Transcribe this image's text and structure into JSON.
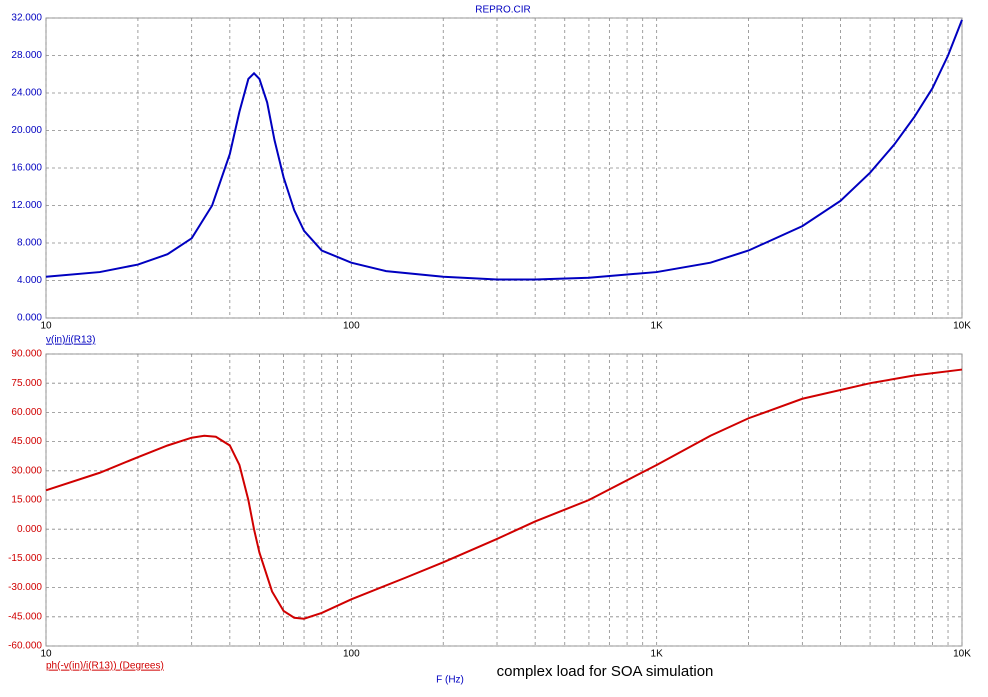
{
  "chart_data": [
    {
      "type": "line",
      "title": "REPRO.CIR",
      "y_label": "v(in)/i(R13)",
      "xscale": "log",
      "grid": true,
      "xlim": [
        10,
        10000
      ],
      "xticks": [
        10,
        100,
        {
          "value": 1000,
          "label": "1K"
        },
        {
          "value": 10000,
          "label": "10K"
        }
      ],
      "ylim": [
        0,
        32
      ],
      "yticks": [
        {
          "value": 0,
          "label": "0.000"
        },
        {
          "value": 4,
          "label": "4.000"
        },
        {
          "value": 8,
          "label": "8.000"
        },
        {
          "value": 12,
          "label": "12.000"
        },
        {
          "value": 16,
          "label": "16.000"
        },
        {
          "value": 20,
          "label": "20.000"
        },
        {
          "value": 24,
          "label": "24.000"
        },
        {
          "value": 28,
          "label": "28.000"
        },
        {
          "value": 32,
          "label": "32.000"
        }
      ],
      "x": [
        10,
        15,
        20,
        25,
        30,
        35,
        40,
        43,
        46,
        48,
        50,
        53,
        56,
        60,
        65,
        70,
        80,
        100,
        130,
        200,
        300,
        400,
        600,
        1000,
        1500,
        2000,
        3000,
        4000,
        5000,
        6000,
        7000,
        8000,
        9000,
        10000
      ],
      "series": [
        {
          "name": "v(in)/i(R13)",
          "color": "#0000c0",
          "values": [
            4.4,
            4.9,
            5.7,
            6.8,
            8.5,
            12,
            17.5,
            22,
            25.5,
            26.1,
            25.5,
            23,
            19,
            15,
            11.5,
            9.3,
            7.2,
            5.9,
            5.0,
            4.4,
            4.1,
            4.1,
            4.3,
            4.9,
            5.9,
            7.2,
            9.8,
            12.5,
            15.5,
            18.5,
            21.5,
            24.5,
            28,
            31.8
          ]
        }
      ]
    },
    {
      "type": "line",
      "y_label": "ph(-v(in)/i(R13)) (Degrees)",
      "x_label": "F (Hz)",
      "annotation": "complex load for SOA simulation",
      "xscale": "log",
      "grid": true,
      "xlim": [
        10,
        10000
      ],
      "xticks": [
        10,
        100,
        {
          "value": 1000,
          "label": "1K"
        },
        {
          "value": 10000,
          "label": "10K"
        }
      ],
      "ylim": [
        -60,
        90
      ],
      "yticks": [
        {
          "value": -60,
          "label": "-60.000"
        },
        {
          "value": -45,
          "label": "-45.000"
        },
        {
          "value": -30,
          "label": "-30.000"
        },
        {
          "value": -15,
          "label": "-15.000"
        },
        {
          "value": 0,
          "label": "0.000"
        },
        {
          "value": 15,
          "label": "15.000"
        },
        {
          "value": 30,
          "label": "30.000"
        },
        {
          "value": 45,
          "label": "45.000"
        },
        {
          "value": 60,
          "label": "60.000"
        },
        {
          "value": 75,
          "label": "75.000"
        },
        {
          "value": 90,
          "label": "90.000"
        }
      ],
      "x": [
        10,
        15,
        20,
        25,
        30,
        33,
        36,
        40,
        43,
        46,
        48,
        50,
        55,
        60,
        65,
        70,
        80,
        100,
        150,
        200,
        300,
        400,
        600,
        1000,
        1500,
        2000,
        3000,
        5000,
        7000,
        10000
      ],
      "series": [
        {
          "name": "ph(-v(in)/i(R13)) (Degrees)",
          "color": "#d00000",
          "values": [
            20,
            29,
            37,
            43,
            47,
            48,
            47.5,
            43,
            33,
            15,
            0,
            -12,
            -32,
            -42,
            -45.5,
            -46,
            -43,
            -36,
            -25,
            -17,
            -5,
            4,
            15,
            33,
            48,
            57,
            67,
            75,
            79,
            82
          ]
        }
      ]
    }
  ]
}
